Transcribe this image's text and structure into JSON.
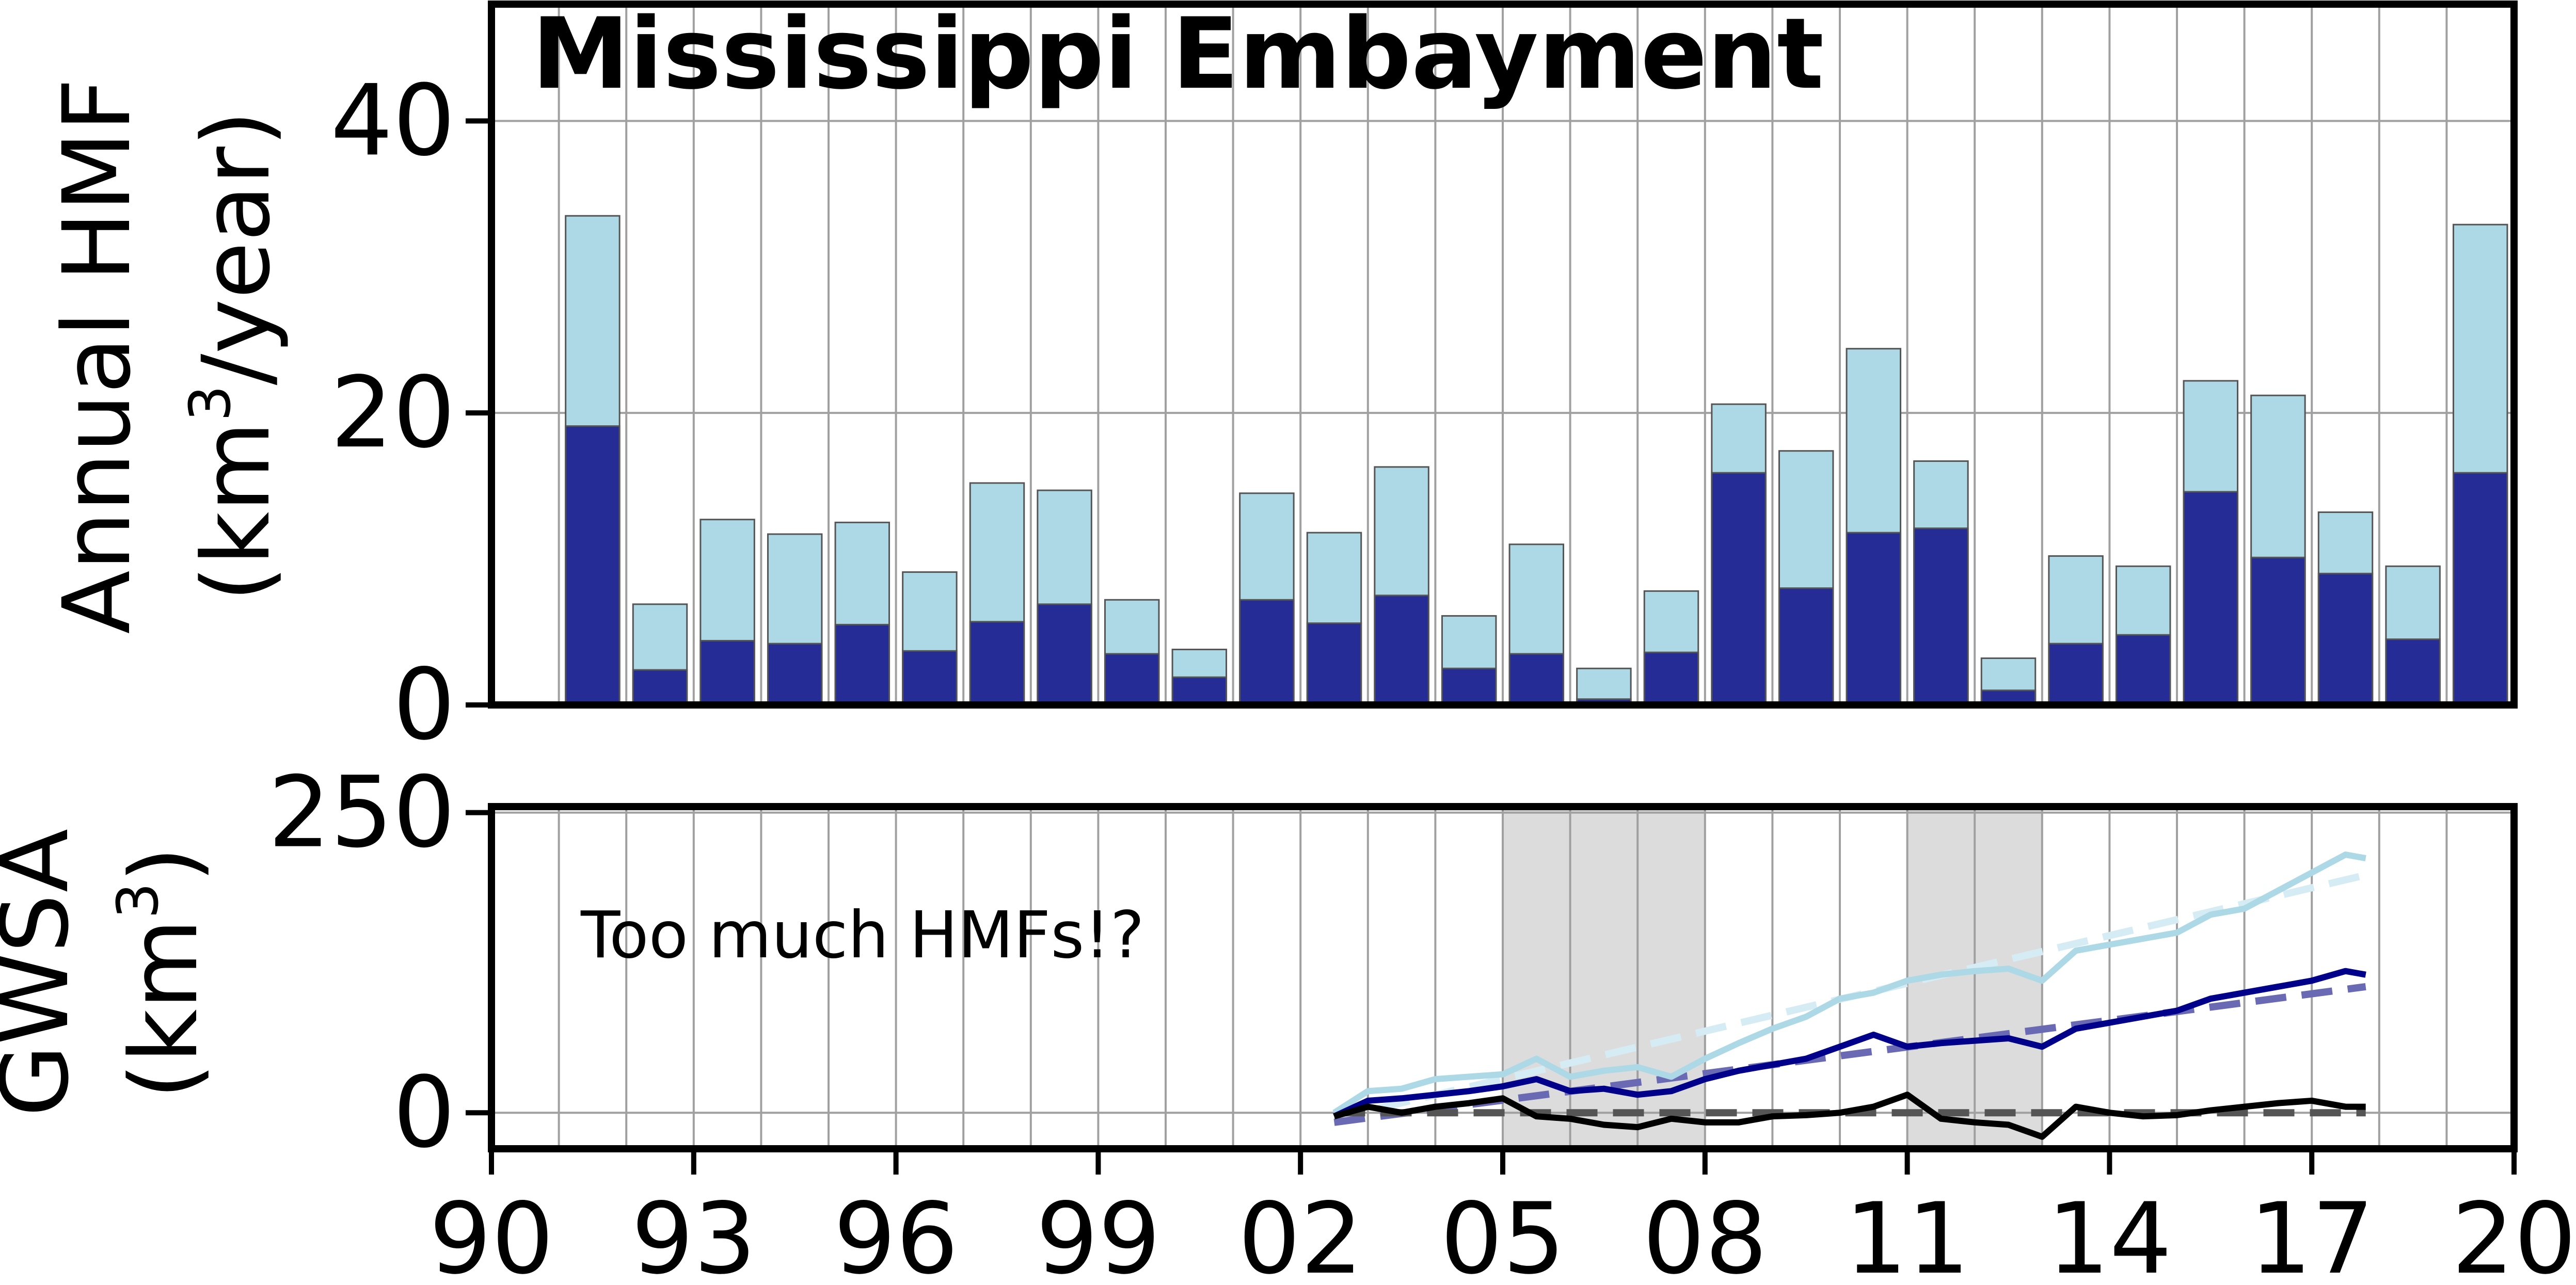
{
  "chart_data": [
    {
      "type": "bar",
      "title": "Mississippi Embayment",
      "ylabel_line1": "Annual HMF",
      "ylabel_line2_pre": "(km",
      "ylabel_line2_sup": "3",
      "ylabel_line2_post": "/year)",
      "ylim": [
        0,
        48
      ],
      "yticks": [
        "0",
        "20",
        "40"
      ],
      "ytick_values": [
        0,
        20,
        40
      ],
      "grid": true,
      "stacked_overlay": true,
      "x": [
        1991,
        1992,
        1993,
        1994,
        1995,
        1996,
        1997,
        1998,
        1999,
        2000,
        2001,
        2002,
        2003,
        2004,
        2005,
        2006,
        2007,
        2008,
        2009,
        2010,
        2011,
        2012,
        2013,
        2014,
        2015,
        2016,
        2017,
        2018,
        2019
      ],
      "series": [
        {
          "color": "#add8e6",
          "values": [
            33.5,
            6.9,
            12.7,
            11.7,
            12.5,
            9.1,
            15.2,
            14.7,
            7.2,
            3.8,
            14.5,
            11.8,
            16.3,
            6.1,
            11.0,
            2.5,
            7.8,
            20.6,
            17.4,
            24.4,
            16.7,
            3.2,
            10.2,
            9.5,
            22.2,
            21.2,
            13.2,
            9.5,
            32.9
          ]
        },
        {
          "color": "#262c95",
          "values": [
            19.1,
            2.4,
            4.4,
            4.2,
            5.5,
            3.7,
            5.7,
            6.9,
            3.5,
            1.9,
            7.2,
            5.6,
            7.5,
            2.5,
            3.5,
            0.4,
            3.6,
            15.9,
            8.0,
            11.8,
            12.1,
            1.0,
            4.2,
            4.8,
            14.6,
            10.1,
            9.0,
            4.5,
            15.9
          ]
        }
      ]
    },
    {
      "type": "line",
      "ylabel_line1": "GWSA",
      "ylabel_line2_pre": "(km",
      "ylabel_line2_sup": "3",
      "ylabel_line2_post": ")",
      "annotation": "Too much HMFs!?",
      "ylim": [
        -30,
        255
      ],
      "yticks": [
        "0",
        "250"
      ],
      "ytick_values": [
        0,
        250
      ],
      "xlim": [
        1990,
        2020
      ],
      "xticks": [
        "90",
        "93",
        "96",
        "99",
        "02",
        "05",
        "08",
        "11",
        "14",
        "17",
        "20"
      ],
      "xtick_values": [
        1990,
        1993,
        1996,
        1999,
        2002,
        2005,
        2008,
        2011,
        2014,
        2017,
        2020
      ],
      "grid": true,
      "shaded_periods": [
        [
          2005,
          2008
        ],
        [
          2011,
          2013
        ]
      ],
      "shade_color": "#dcdcdc",
      "series": [
        {
          "color": "#add8e6",
          "x": [
            2002.5,
            2003.0,
            2003.5,
            2004.0,
            2004.5,
            2005.0,
            2005.5,
            2006.0,
            2006.5,
            2007.0,
            2007.5,
            2008.0,
            2008.5,
            2009.0,
            2009.5,
            2010.0,
            2010.5,
            2011.0,
            2011.5,
            2012.0,
            2012.5,
            2013.0,
            2013.5,
            2014.0,
            2014.5,
            2015.0,
            2015.5,
            2016.0,
            2016.5,
            2017.0,
            2017.5,
            2017.8
          ],
          "y": [
            0,
            18,
            20,
            28,
            30,
            32,
            45,
            30,
            35,
            38,
            30,
            45,
            58,
            70,
            80,
            95,
            100,
            110,
            115,
            118,
            120,
            110,
            135,
            140,
            145,
            150,
            165,
            170,
            185,
            200,
            215,
            212
          ]
        },
        {
          "color": "#00008b",
          "x": [
            2002.5,
            2003.0,
            2003.5,
            2004.0,
            2004.5,
            2005.0,
            2005.5,
            2006.0,
            2006.5,
            2007.0,
            2007.5,
            2008.0,
            2008.5,
            2009.0,
            2009.5,
            2010.0,
            2010.5,
            2011.0,
            2011.5,
            2012.0,
            2012.5,
            2013.0,
            2013.5,
            2014.0,
            2014.5,
            2015.0,
            2015.5,
            2016.0,
            2016.5,
            2017.0,
            2017.5,
            2017.8
          ],
          "y": [
            -3,
            10,
            12,
            15,
            18,
            22,
            28,
            18,
            20,
            15,
            18,
            28,
            35,
            40,
            45,
            55,
            65,
            55,
            58,
            60,
            62,
            55,
            70,
            75,
            80,
            85,
            95,
            100,
            105,
            110,
            118,
            115
          ]
        },
        {
          "color": "#000000",
          "x": [
            2002.5,
            2003.0,
            2003.5,
            2004.0,
            2004.5,
            2005.0,
            2005.5,
            2006.0,
            2006.5,
            2007.0,
            2007.5,
            2008.0,
            2008.5,
            2009.0,
            2009.5,
            2010.0,
            2010.5,
            2011.0,
            2011.5,
            2012.0,
            2012.5,
            2013.0,
            2013.5,
            2014.0,
            2014.5,
            2015.0,
            2015.5,
            2016.0,
            2016.5,
            2017.0,
            2017.5,
            2017.8
          ],
          "y": [
            -3,
            5,
            0,
            5,
            8,
            12,
            -3,
            -5,
            -10,
            -12,
            -5,
            -8,
            -8,
            -3,
            -2,
            0,
            5,
            15,
            -5,
            -8,
            -10,
            -20,
            5,
            0,
            -3,
            -2,
            2,
            5,
            8,
            10,
            5,
            5
          ]
        }
      ],
      "trend_lines": [
        {
          "color": "#d6ecf4",
          "x": [
            2002.5,
            2017.8
          ],
          "y": [
            -5,
            198
          ]
        },
        {
          "color": "#6a6ab4",
          "x": [
            2002.5,
            2017.8
          ],
          "y": [
            -8,
            105
          ]
        },
        {
          "color": "#555555",
          "x": [
            2002.5,
            2017.8
          ],
          "y": [
            0,
            0
          ]
        }
      ]
    }
  ]
}
